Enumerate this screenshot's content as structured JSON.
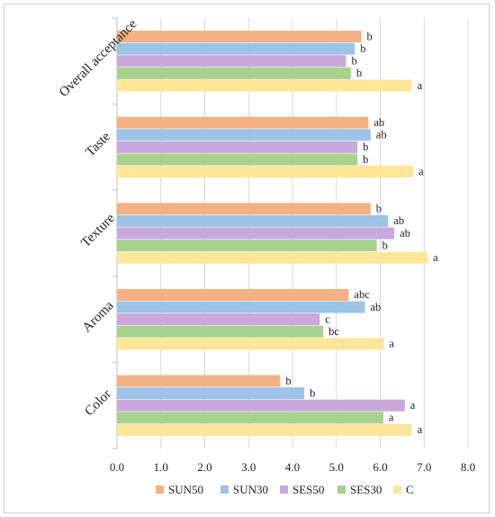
{
  "chart_data": {
    "type": "bar",
    "orientation": "horizontal",
    "categories": [
      "Color",
      "Aroma",
      "Texture",
      "Taste",
      "Overall acceptance"
    ],
    "series": [
      {
        "name": "C",
        "color": "#FFE699",
        "values": [
          6.72,
          6.08,
          7.08,
          6.75,
          6.72
        ],
        "labels": [
          "a",
          "a",
          "a",
          "a",
          "a"
        ]
      },
      {
        "name": "SES30",
        "color": "#A9D18E",
        "values": [
          6.07,
          4.7,
          5.92,
          5.48,
          5.33
        ],
        "labels": [
          "a",
          "bc",
          "b",
          "b",
          "b"
        ]
      },
      {
        "name": "SES50",
        "color": "#C9A8DB",
        "values": [
          6.56,
          4.62,
          6.32,
          5.48,
          5.22
        ],
        "labels": [
          "a",
          "c",
          "ab",
          "b",
          "b"
        ]
      },
      {
        "name": "SUN30",
        "color": "#9DC3E6",
        "values": [
          4.27,
          5.65,
          6.18,
          5.78,
          5.42
        ],
        "labels": [
          "b",
          "ab",
          "ab",
          "ab",
          "b"
        ]
      },
      {
        "name": "SUN50",
        "color": "#F4B183",
        "values": [
          3.72,
          5.28,
          5.78,
          5.73,
          5.57
        ],
        "labels": [
          "b",
          "abc",
          "b",
          "ab",
          "b"
        ]
      }
    ],
    "legend_order": [
      "SUN50",
      "SUN30",
      "SES50",
      "SES30",
      "C"
    ],
    "x_ticks": [
      "0.0",
      "1.0",
      "2.0",
      "3.0",
      "4.0",
      "5.0",
      "6.0",
      "7.0",
      "8.0"
    ],
    "xlim": [
      0,
      8
    ],
    "grid": true,
    "legend_position": "bottom",
    "title": "",
    "xlabel": "",
    "ylabel": ""
  }
}
